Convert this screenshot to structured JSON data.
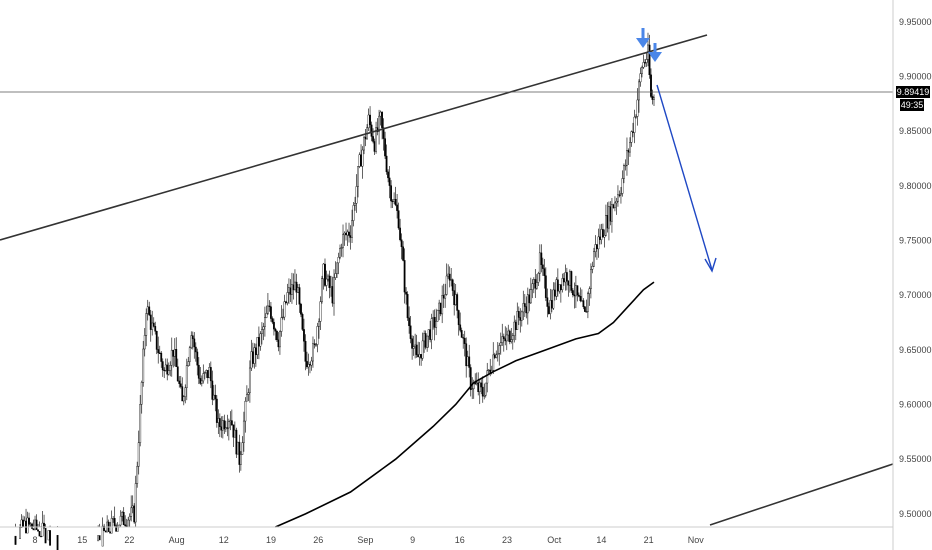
{
  "chart_data": {
    "type": "candlestick",
    "y_axis": {
      "ticks": [
        "9.95000",
        "9.90000",
        "9.85000",
        "9.80000",
        "9.75000",
        "9.70000",
        "9.65000",
        "9.60000",
        "9.55000",
        "9.50000"
      ],
      "range": [
        9.488,
        9.97
      ]
    },
    "x_axis": {
      "ticks": [
        "8",
        "15",
        "22",
        "Aug",
        "12",
        "19",
        "26",
        "Sep",
        "9",
        "16",
        "23",
        "Oct",
        "14",
        "21",
        "Nov"
      ]
    },
    "current_price": "9.89419",
    "countdown": "49:35",
    "ohlc_path": [
      [
        0,
        9.47
      ],
      [
        14,
        9.49
      ],
      [
        30,
        9.48
      ],
      [
        42,
        9.46
      ],
      [
        58,
        9.47
      ],
      [
        72,
        9.49
      ],
      [
        86,
        9.5
      ],
      [
        94,
        9.69
      ],
      [
        100,
        9.66
      ],
      [
        106,
        9.63
      ],
      [
        112,
        9.65
      ],
      [
        118,
        9.6
      ],
      [
        124,
        9.67
      ],
      [
        130,
        9.62
      ],
      [
        136,
        9.63
      ],
      [
        142,
        9.58
      ],
      [
        150,
        9.59
      ],
      [
        156,
        9.55
      ],
      [
        164,
        9.64
      ],
      [
        170,
        9.66
      ],
      [
        176,
        9.69
      ],
      [
        182,
        9.66
      ],
      [
        188,
        9.7
      ],
      [
        194,
        9.71
      ],
      [
        200,
        9.64
      ],
      [
        206,
        9.65
      ],
      [
        212,
        9.72
      ],
      [
        218,
        9.7
      ],
      [
        224,
        9.75
      ],
      [
        230,
        9.76
      ],
      [
        236,
        9.82
      ],
      [
        242,
        9.86
      ],
      [
        246,
        9.84
      ],
      [
        250,
        9.86
      ],
      [
        256,
        9.8
      ],
      [
        262,
        9.77
      ],
      [
        268,
        9.68
      ],
      [
        274,
        9.64
      ],
      [
        280,
        9.66
      ],
      [
        288,
        9.68
      ],
      [
        296,
        9.72
      ],
      [
        302,
        9.68
      ],
      [
        310,
        9.62
      ],
      [
        318,
        9.61
      ],
      [
        326,
        9.65
      ],
      [
        334,
        9.66
      ],
      [
        342,
        9.68
      ],
      [
        350,
        9.7
      ],
      [
        356,
        9.73
      ],
      [
        362,
        9.69
      ],
      [
        368,
        9.71
      ],
      [
        374,
        9.72
      ],
      [
        380,
        9.7
      ],
      [
        386,
        9.68
      ],
      [
        392,
        9.74
      ],
      [
        398,
        9.76
      ],
      [
        404,
        9.78
      ],
      [
        410,
        9.8
      ],
      [
        416,
        9.84
      ],
      [
        420,
        9.87
      ],
      [
        424,
        9.91
      ],
      [
        428,
        9.92
      ],
      [
        430,
        9.88
      ]
    ],
    "moving_average": [
      [
        180,
        9.488
      ],
      [
        200,
        9.5
      ],
      [
        230,
        9.52
      ],
      [
        260,
        9.55
      ],
      [
        285,
        9.58
      ],
      [
        300,
        9.6
      ],
      [
        312,
        9.62
      ],
      [
        325,
        9.63
      ],
      [
        340,
        9.64
      ],
      [
        360,
        9.65
      ],
      [
        380,
        9.66
      ],
      [
        395,
        9.665
      ],
      [
        405,
        9.675
      ],
      [
        415,
        9.69
      ],
      [
        425,
        9.705
      ],
      [
        432,
        9.712
      ]
    ]
  }
}
